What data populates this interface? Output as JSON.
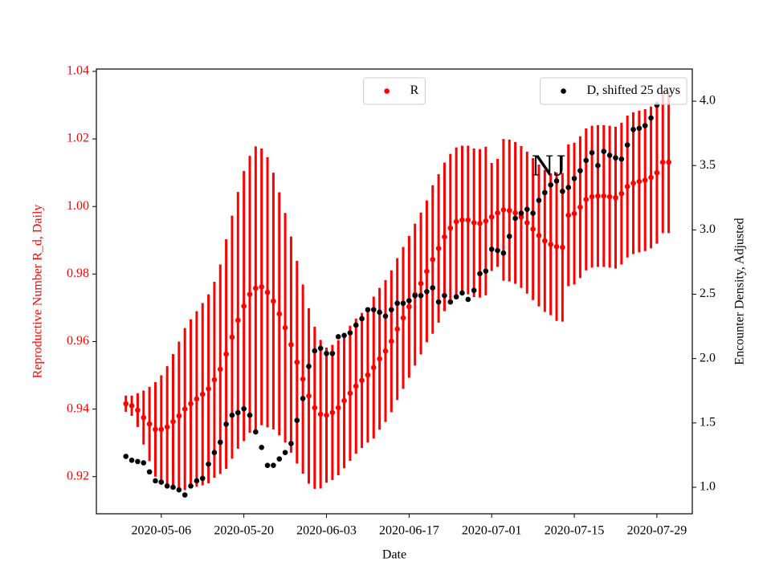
{
  "chart_data": {
    "type": "errorbar_dual",
    "xlabel": "Date",
    "ylabel": "Reproductive Number R_d, Daily",
    "y2label": "Encounter Density, Adjusted",
    "annotation": "NJ",
    "x": [
      "2020-04-30",
      "2020-05-01",
      "2020-05-02",
      "2020-05-03",
      "2020-05-04",
      "2020-05-05",
      "2020-05-06",
      "2020-05-07",
      "2020-05-08",
      "2020-05-09",
      "2020-05-10",
      "2020-05-11",
      "2020-05-12",
      "2020-05-13",
      "2020-05-14",
      "2020-05-15",
      "2020-05-16",
      "2020-05-17",
      "2020-05-18",
      "2020-05-19",
      "2020-05-20",
      "2020-05-21",
      "2020-05-22",
      "2020-05-23",
      "2020-05-24",
      "2020-05-25",
      "2020-05-26",
      "2020-05-27",
      "2020-05-28",
      "2020-05-29",
      "2020-05-30",
      "2020-05-31",
      "2020-06-01",
      "2020-06-02",
      "2020-06-03",
      "2020-06-04",
      "2020-06-05",
      "2020-06-06",
      "2020-06-07",
      "2020-06-08",
      "2020-06-09",
      "2020-06-10",
      "2020-06-11",
      "2020-06-12",
      "2020-06-13",
      "2020-06-14",
      "2020-06-15",
      "2020-06-16",
      "2020-06-17",
      "2020-06-18",
      "2020-06-19",
      "2020-06-20",
      "2020-06-21",
      "2020-06-22",
      "2020-06-23",
      "2020-06-24",
      "2020-06-25",
      "2020-06-26",
      "2020-06-27",
      "2020-06-28",
      "2020-06-29",
      "2020-06-30",
      "2020-07-01",
      "2020-07-02",
      "2020-07-03",
      "2020-07-04",
      "2020-07-05",
      "2020-07-06",
      "2020-07-07",
      "2020-07-08",
      "2020-07-09",
      "2020-07-10",
      "2020-07-11",
      "2020-07-12",
      "2020-07-13",
      "2020-07-14",
      "2020-07-15",
      "2020-07-16",
      "2020-07-17",
      "2020-07-18",
      "2020-07-19",
      "2020-07-20",
      "2020-07-21",
      "2020-07-22",
      "2020-07-23",
      "2020-07-24",
      "2020-07-25",
      "2020-07-26",
      "2020-07-27",
      "2020-07-28",
      "2020-07-29",
      "2020-07-30",
      "2020-07-31"
    ],
    "series": [
      {
        "name": "R",
        "color": "red",
        "legend_loc": "upper center",
        "values": [
          0.9416,
          0.941,
          0.9397,
          0.9375,
          0.9356,
          0.934,
          0.934,
          0.9347,
          0.9363,
          0.938,
          0.94,
          0.9416,
          0.943,
          0.9444,
          0.946,
          0.9487,
          0.9518,
          0.9563,
          0.9613,
          0.9663,
          0.9705,
          0.974,
          0.9758,
          0.9762,
          0.9746,
          0.972,
          0.9682,
          0.9641,
          0.9591,
          0.9539,
          0.9489,
          0.9439,
          0.9404,
          0.9385,
          0.9382,
          0.939,
          0.9404,
          0.9425,
          0.9447,
          0.9468,
          0.9485,
          0.9501,
          0.9523,
          0.9549,
          0.9572,
          0.9601,
          0.9637,
          0.967,
          0.9703,
          0.9739,
          0.9772,
          0.9808,
          0.9843,
          0.9876,
          0.991,
          0.9936,
          0.9955,
          0.996,
          0.996,
          0.9952,
          0.995,
          0.9957,
          0.9969,
          0.9981,
          0.999,
          0.9988,
          0.9981,
          0.9969,
          0.9952,
          0.9933,
          0.9914,
          0.9898,
          0.9888,
          0.9881,
          0.9879,
          0.9974,
          0.9979,
          0.9998,
          1.0021,
          1.0029,
          1.0031,
          1.0031,
          1.0029,
          1.0026,
          1.0038,
          1.0059,
          1.0069,
          1.0074,
          1.0078,
          1.0086,
          1.01,
          1.0131,
          1.0131
        ],
        "errors": [
          0.0024,
          0.003,
          0.005,
          0.008,
          0.011,
          0.014,
          0.016,
          0.018,
          0.02,
          0.022,
          0.024,
          0.025,
          0.026,
          0.027,
          0.028,
          0.029,
          0.031,
          0.034,
          0.036,
          0.038,
          0.04,
          0.041,
          0.042,
          0.041,
          0.04,
          0.038,
          0.036,
          0.034,
          0.032,
          0.03,
          0.028,
          0.026,
          0.024,
          0.022,
          0.02,
          0.02,
          0.02,
          0.02,
          0.02,
          0.02,
          0.02,
          0.02,
          0.021,
          0.021,
          0.021,
          0.021,
          0.021,
          0.021,
          0.021,
          0.021,
          0.021,
          0.021,
          0.022,
          0.022,
          0.022,
          0.022,
          0.022,
          0.022,
          0.022,
          0.022,
          0.022,
          0.022,
          0.016,
          0.016,
          0.021,
          0.021,
          0.021,
          0.021,
          0.021,
          0.021,
          0.021,
          0.021,
          0.021,
          0.022,
          0.022,
          0.021,
          0.021,
          0.021,
          0.021,
          0.021,
          0.021,
          0.021,
          0.021,
          0.021,
          0.021,
          0.021,
          0.021,
          0.021,
          0.021,
          0.021,
          0.021,
          0.021,
          0.021
        ]
      },
      {
        "name": "D, shifted 25 days",
        "color": "black",
        "axis": "y2",
        "legend_loc": "upper right",
        "values": [
          1.24,
          1.21,
          1.2,
          1.19,
          1.12,
          1.05,
          1.04,
          1.01,
          1.0,
          0.98,
          0.94,
          1.01,
          1.05,
          1.07,
          1.18,
          1.27,
          1.35,
          1.49,
          1.56,
          1.58,
          1.61,
          1.56,
          1.43,
          1.31,
          1.17,
          1.17,
          1.22,
          1.27,
          1.34,
          1.52,
          1.69,
          1.94,
          2.06,
          2.08,
          2.04,
          2.04,
          2.17,
          2.18,
          2.2,
          2.26,
          2.31,
          2.38,
          2.38,
          2.36,
          2.33,
          2.38,
          2.43,
          2.43,
          2.45,
          2.49,
          2.49,
          2.52,
          2.55,
          2.44,
          2.49,
          2.44,
          2.48,
          2.51,
          2.46,
          2.53,
          2.66,
          2.68,
          2.85,
          2.84,
          2.82,
          2.95,
          3.09,
          3.13,
          3.16,
          3.13,
          3.23,
          3.29,
          3.35,
          3.38,
          3.3,
          3.33,
          3.4,
          3.46,
          3.54,
          3.6,
          3.5,
          3.61,
          3.58,
          3.56,
          3.55,
          3.66,
          3.78,
          3.79,
          3.81,
          3.87,
          3.97,
          null,
          null
        ]
      }
    ],
    "xlim": [
      "2020-04-25",
      "2020-08-04"
    ],
    "xticks": [
      "2020-05-06",
      "2020-05-20",
      "2020-06-03",
      "2020-06-17",
      "2020-07-01",
      "2020-07-15",
      "2020-07-29"
    ],
    "ylim": [
      0.909,
      1.0407
    ],
    "yticks": [
      0.92,
      0.94,
      0.96,
      0.98,
      {
        "value": 1,
        "label": "1.00"
      },
      1.02,
      1.04
    ],
    "y2lim": [
      0.794,
      4.25
    ],
    "y2ticks": [
      {
        "value": 1,
        "label": "1.0"
      },
      1.5,
      {
        "value": 2,
        "label": "2.0"
      },
      2.5,
      {
        "value": 3,
        "label": "3.0"
      },
      3.5,
      {
        "value": 4,
        "label": "4.0"
      }
    ]
  }
}
